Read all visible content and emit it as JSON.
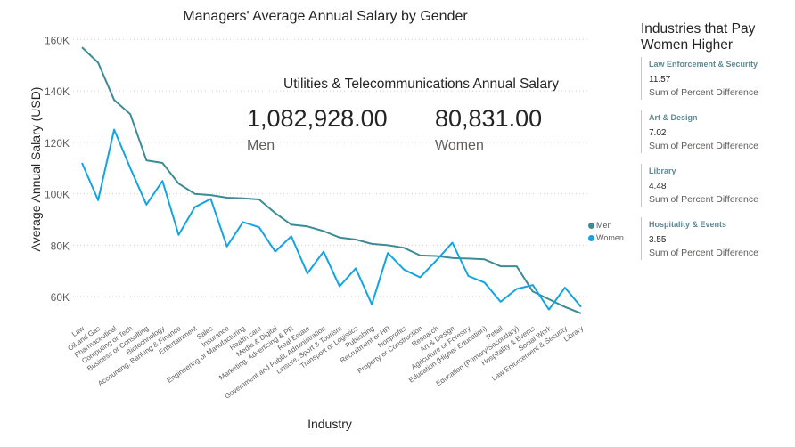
{
  "chart_data": {
    "type": "line",
    "title": "Managers' Average Annual Salary by Gender",
    "xlabel": "Industry",
    "ylabel": "Average Annual Salary (USD)",
    "ylim": [
      50000,
      165000
    ],
    "yticks": [
      60000,
      80000,
      100000,
      120000,
      140000,
      160000
    ],
    "ytick_labels": [
      "60K",
      "80K",
      "100K",
      "120K",
      "140K",
      "160K"
    ],
    "grid": true,
    "legend_position": "right",
    "categories": [
      "Law",
      "Oil and Gas",
      "Pharmaceutical",
      "Computing or Tech",
      "Business or Consulting",
      "Biotechnology",
      "Accounting, Banking & Finance",
      "Entertainment",
      "Sales",
      "Insurance",
      "Engineering or Manufacturing",
      "Health care",
      "Media & Digital",
      "Marketing, Advertising & PR",
      "Real Estate",
      "Government and Public Administration",
      "Leisure, Sport & Tourism",
      "Transport or Logistics",
      "Publishing",
      "Recruitment or HR",
      "Nonprofits",
      "Property or Construction",
      "Research",
      "Art & Design",
      "Agriculture or Forestry",
      "Education (Higher Education)",
      "Retail",
      "Education (Primary/Secondary)",
      "Hospitality & Events",
      "Social Work",
      "Law Enforcement & Security",
      "Library"
    ],
    "series": [
      {
        "name": "Men",
        "color": "#3d8c95",
        "values": [
          157000,
          151000,
          136500,
          131000,
          113000,
          112000,
          104000,
          100000,
          99500,
          98500,
          98200,
          97800,
          92500,
          88000,
          87300,
          85500,
          83000,
          82200,
          80500,
          80000,
          79000,
          76000,
          75800,
          75000,
          74800,
          74500,
          71800,
          71800,
          62000,
          59000,
          56000,
          53500
        ]
      },
      {
        "name": "Women",
        "color": "#12a5e2",
        "values": [
          112000,
          97500,
          125000,
          110000,
          95800,
          105000,
          84000,
          94800,
          98000,
          79500,
          89000,
          87000,
          77500,
          83500,
          69000,
          77500,
          64000,
          71000,
          57000,
          77000,
          70500,
          67500,
          74000,
          81000,
          68000,
          65500,
          58000,
          63000,
          64500,
          55000,
          63500,
          56000
        ]
      }
    ]
  },
  "utilities_card": {
    "title": "Utilities & Telecommunications Annual Salary",
    "men_value": "1,082,928.00",
    "men_label": "Men",
    "women_value": "80,831.00",
    "women_label": "Women"
  },
  "side_panel": {
    "title": "Industries that Pay Women Higher",
    "items": [
      {
        "name": "Law Enforcement & Security",
        "value": "11.57",
        "sub": "Sum of Percent Difference"
      },
      {
        "name": "Art & Design",
        "value": "7.02",
        "sub": "Sum of Percent Difference"
      },
      {
        "name": "Library",
        "value": "4.48",
        "sub": "Sum of Percent Difference"
      },
      {
        "name": "Hospitality & Events",
        "value": "3.55",
        "sub": "Sum of Percent Difference"
      }
    ]
  }
}
